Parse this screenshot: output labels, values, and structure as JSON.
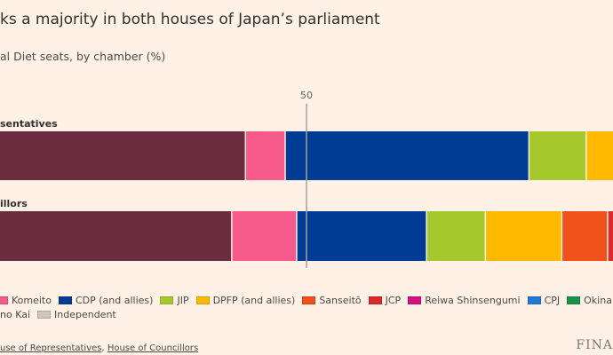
{
  "title": "ks a majority in both houses of Japan’s parliament",
  "subtitle": "al Diet seats, by chamber (%)",
  "source": {
    "link1": "use of Representatives",
    "sep": ", ",
    "link2": "House of Councillors"
  },
  "logo": "FINA",
  "chart_data": {
    "type": "bar",
    "orientation": "horizontal",
    "stacked": true,
    "reference_line": {
      "value": 50,
      "label": "50"
    },
    "xlim": [
      0,
      100
    ],
    "categories": [
      "sentatives",
      "illors"
    ],
    "colors": {
      "LDP": "#6a2c3e",
      "Komeito": "#f55a8a",
      "CDP (and allies)": "#003b94",
      "JIP": "#a5c92d",
      "DPFP (and allies)": "#ffb900",
      "Sanseitō": "#f1521c",
      "JCP": "#dc2a2a",
      "Reiwa Shinsengumi": "#d4127f",
      "CPJ": "#1e78d6",
      "Okina": "#19934a",
      "Independent": "#cec6b9"
    },
    "series": [
      {
        "party": "LDP",
        "values": [
          42.1,
          40.3
        ]
      },
      {
        "party": "Komeito",
        "values": [
          5.2,
          8.5
        ]
      },
      {
        "party": "CDP (and allies)",
        "values": [
          31.9,
          17.0
        ]
      },
      {
        "party": "JIP",
        "values": [
          7.5,
          7.7
        ]
      },
      {
        "party": "DPFP (and allies)",
        "values": [
          6.0,
          10.0
        ]
      },
      {
        "party": "Sanseitō",
        "values": [
          0,
          6.0
        ]
      },
      {
        "party": "JCP",
        "values": [
          0,
          2.8
        ]
      }
    ],
    "legend": [
      "Komeito",
      "CDP (and allies)",
      "JIP",
      "DPFP (and allies)",
      "Sanseitō",
      "JCP",
      "Reiwa Shinsengumi",
      "CPJ",
      "Okina",
      "no Kai",
      "Independent"
    ],
    "legend_placement": "bottom",
    "grid": false
  }
}
